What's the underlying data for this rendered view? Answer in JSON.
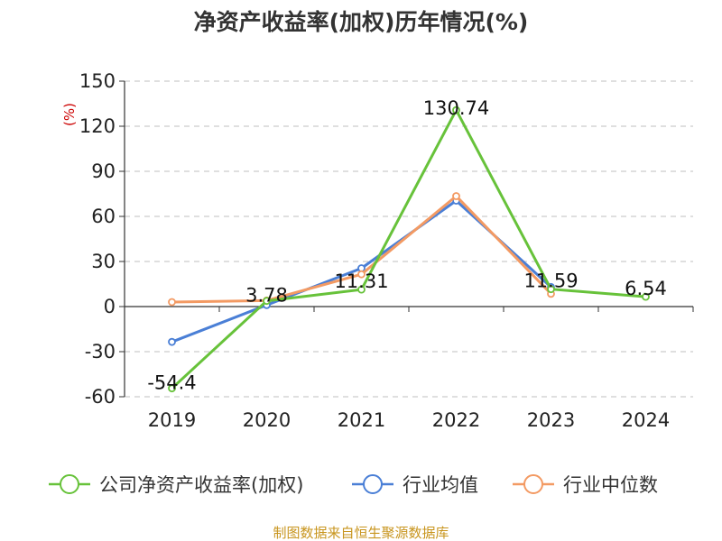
{
  "chart_data": {
    "type": "line",
    "title": "净资产收益率(加权)历年情况(%)",
    "ylabel": "(%)",
    "ylim": [
      -60,
      150
    ],
    "yticks": [
      150,
      120,
      90,
      60,
      30,
      0,
      -30,
      -60
    ],
    "categories": [
      "2019",
      "2020",
      "2021",
      "2022",
      "2023",
      "2024"
    ],
    "grid": "horizontal dashed",
    "legend_position": "bottom",
    "series": [
      {
        "name": "公司净资产收益率(加权)",
        "color": "#67c23a",
        "values": [
          -54.4,
          3.78,
          11.31,
          130.74,
          11.59,
          6.54
        ],
        "labels": [
          "-54.4",
          "3.78",
          "11.31",
          "130.74",
          "11.59",
          "6.54"
        ]
      },
      {
        "name": "行业均值",
        "color": "#4a7fd6",
        "values": [
          -23.5,
          1.0,
          25.5,
          70.5,
          13.0,
          null
        ]
      },
      {
        "name": "行业中位数",
        "color": "#f39a63",
        "values": [
          3.0,
          4.0,
          21.5,
          73.5,
          8.5,
          null
        ]
      }
    ]
  },
  "source": "制图数据来自恒生聚源数据库"
}
